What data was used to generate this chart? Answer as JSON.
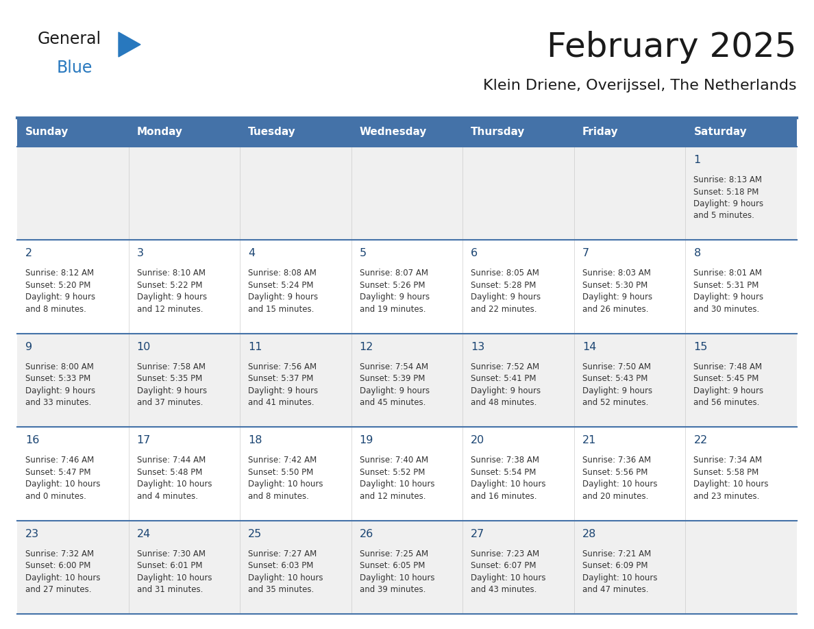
{
  "title": "February 2025",
  "subtitle": "Klein Driene, Overijssel, The Netherlands",
  "header_bg": "#4472a8",
  "header_text": "#ffffff",
  "row_bg_odd": "#f0f0f0",
  "row_bg_even": "#ffffff",
  "border_color": "#4472a8",
  "day_headers": [
    "Sunday",
    "Monday",
    "Tuesday",
    "Wednesday",
    "Thursday",
    "Friday",
    "Saturday"
  ],
  "title_color": "#1a1a1a",
  "subtitle_color": "#1a1a1a",
  "day_num_color": "#1a4472",
  "cell_text_color": "#333333",
  "calendar": [
    [
      null,
      null,
      null,
      null,
      null,
      null,
      {
        "day": 1,
        "sunrise": "8:13 AM",
        "sunset": "5:18 PM",
        "daylight": "9 hours\nand 5 minutes."
      }
    ],
    [
      {
        "day": 2,
        "sunrise": "8:12 AM",
        "sunset": "5:20 PM",
        "daylight": "9 hours\nand 8 minutes."
      },
      {
        "day": 3,
        "sunrise": "8:10 AM",
        "sunset": "5:22 PM",
        "daylight": "9 hours\nand 12 minutes."
      },
      {
        "day": 4,
        "sunrise": "8:08 AM",
        "sunset": "5:24 PM",
        "daylight": "9 hours\nand 15 minutes."
      },
      {
        "day": 5,
        "sunrise": "8:07 AM",
        "sunset": "5:26 PM",
        "daylight": "9 hours\nand 19 minutes."
      },
      {
        "day": 6,
        "sunrise": "8:05 AM",
        "sunset": "5:28 PM",
        "daylight": "9 hours\nand 22 minutes."
      },
      {
        "day": 7,
        "sunrise": "8:03 AM",
        "sunset": "5:30 PM",
        "daylight": "9 hours\nand 26 minutes."
      },
      {
        "day": 8,
        "sunrise": "8:01 AM",
        "sunset": "5:31 PM",
        "daylight": "9 hours\nand 30 minutes."
      }
    ],
    [
      {
        "day": 9,
        "sunrise": "8:00 AM",
        "sunset": "5:33 PM",
        "daylight": "9 hours\nand 33 minutes."
      },
      {
        "day": 10,
        "sunrise": "7:58 AM",
        "sunset": "5:35 PM",
        "daylight": "9 hours\nand 37 minutes."
      },
      {
        "day": 11,
        "sunrise": "7:56 AM",
        "sunset": "5:37 PM",
        "daylight": "9 hours\nand 41 minutes."
      },
      {
        "day": 12,
        "sunrise": "7:54 AM",
        "sunset": "5:39 PM",
        "daylight": "9 hours\nand 45 minutes."
      },
      {
        "day": 13,
        "sunrise": "7:52 AM",
        "sunset": "5:41 PM",
        "daylight": "9 hours\nand 48 minutes."
      },
      {
        "day": 14,
        "sunrise": "7:50 AM",
        "sunset": "5:43 PM",
        "daylight": "9 hours\nand 52 minutes."
      },
      {
        "day": 15,
        "sunrise": "7:48 AM",
        "sunset": "5:45 PM",
        "daylight": "9 hours\nand 56 minutes."
      }
    ],
    [
      {
        "day": 16,
        "sunrise": "7:46 AM",
        "sunset": "5:47 PM",
        "daylight": "10 hours\nand 0 minutes."
      },
      {
        "day": 17,
        "sunrise": "7:44 AM",
        "sunset": "5:48 PM",
        "daylight": "10 hours\nand 4 minutes."
      },
      {
        "day": 18,
        "sunrise": "7:42 AM",
        "sunset": "5:50 PM",
        "daylight": "10 hours\nand 8 minutes."
      },
      {
        "day": 19,
        "sunrise": "7:40 AM",
        "sunset": "5:52 PM",
        "daylight": "10 hours\nand 12 minutes."
      },
      {
        "day": 20,
        "sunrise": "7:38 AM",
        "sunset": "5:54 PM",
        "daylight": "10 hours\nand 16 minutes."
      },
      {
        "day": 21,
        "sunrise": "7:36 AM",
        "sunset": "5:56 PM",
        "daylight": "10 hours\nand 20 minutes."
      },
      {
        "day": 22,
        "sunrise": "7:34 AM",
        "sunset": "5:58 PM",
        "daylight": "10 hours\nand 23 minutes."
      }
    ],
    [
      {
        "day": 23,
        "sunrise": "7:32 AM",
        "sunset": "6:00 PM",
        "daylight": "10 hours\nand 27 minutes."
      },
      {
        "day": 24,
        "sunrise": "7:30 AM",
        "sunset": "6:01 PM",
        "daylight": "10 hours\nand 31 minutes."
      },
      {
        "day": 25,
        "sunrise": "7:27 AM",
        "sunset": "6:03 PM",
        "daylight": "10 hours\nand 35 minutes."
      },
      {
        "day": 26,
        "sunrise": "7:25 AM",
        "sunset": "6:05 PM",
        "daylight": "10 hours\nand 39 minutes."
      },
      {
        "day": 27,
        "sunrise": "7:23 AM",
        "sunset": "6:07 PM",
        "daylight": "10 hours\nand 43 minutes."
      },
      {
        "day": 28,
        "sunrise": "7:21 AM",
        "sunset": "6:09 PM",
        "daylight": "10 hours\nand 47 minutes."
      },
      null
    ]
  ],
  "logo_color_general": "#1a1a1a",
  "logo_color_blue": "#2878be",
  "logo_triangle_color": "#2878be",
  "fig_width": 11.88,
  "fig_height": 9.18,
  "dpi": 100
}
